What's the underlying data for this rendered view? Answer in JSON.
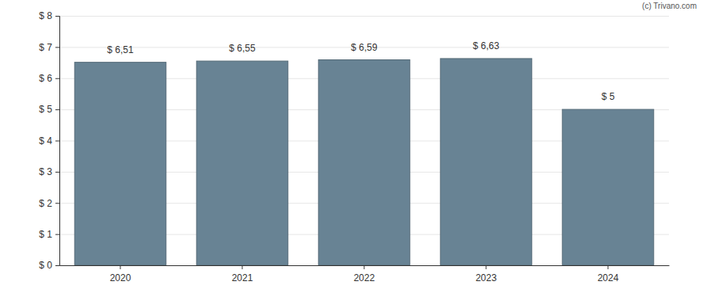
{
  "chart_data": {
    "type": "bar",
    "annotations": [
      "(c) Trivano.com"
    ],
    "categories": [
      "2020",
      "2021",
      "2022",
      "2023",
      "2024"
    ],
    "values": [
      6.51,
      6.55,
      6.59,
      6.63,
      5
    ],
    "value_labels": [
      "$ 6,51",
      "$ 6,55",
      "$ 6,59",
      "$ 6,63",
      "$ 5"
    ],
    "data_labels": true,
    "color": "#688394",
    "ylim": [
      0,
      8
    ],
    "yticks": [
      {
        "value": 0,
        "label": "$ 0"
      },
      {
        "value": 1,
        "label": "$ 1"
      },
      {
        "value": 2,
        "label": "$ 2"
      },
      {
        "value": 3,
        "label": "$ 3"
      },
      {
        "value": 4,
        "label": "$ 4"
      },
      {
        "value": 5,
        "label": "$ 5"
      },
      {
        "value": 6,
        "label": "$ 6"
      },
      {
        "value": 7,
        "label": "$ 7"
      },
      {
        "value": 8,
        "label": "$ 8"
      }
    ],
    "grid": true
  }
}
